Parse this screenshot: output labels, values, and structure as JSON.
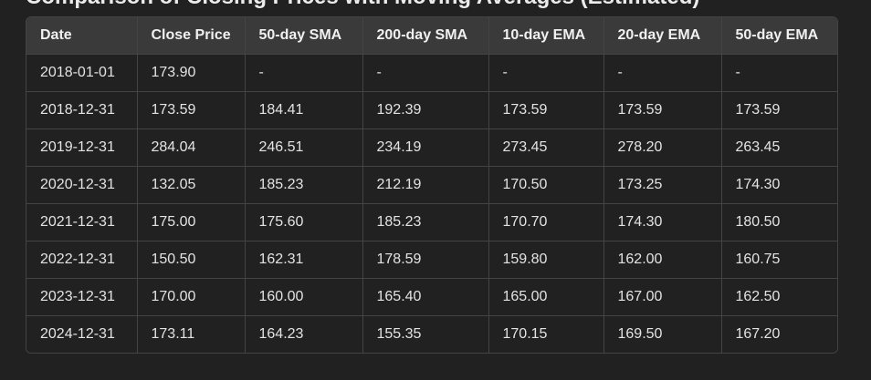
{
  "heading": "Comparison of Closing Prices with Moving Averages (Estimated)",
  "table": {
    "headers": [
      "Date",
      "Close Price",
      "50-day SMA",
      "200-day SMA",
      "10-day EMA",
      "20-day EMA",
      "50-day EMA"
    ],
    "rows": [
      [
        "2018-01-01",
        "173.90",
        "-",
        "-",
        "-",
        "-",
        "-"
      ],
      [
        "2018-12-31",
        "173.59",
        "184.41",
        "192.39",
        "173.59",
        "173.59",
        "173.59"
      ],
      [
        "2019-12-31",
        "284.04",
        "246.51",
        "234.19",
        "273.45",
        "278.20",
        "263.45"
      ],
      [
        "2020-12-31",
        "132.05",
        "185.23",
        "212.19",
        "170.50",
        "173.25",
        "174.30"
      ],
      [
        "2021-12-31",
        "175.00",
        "175.60",
        "185.23",
        "170.70",
        "174.30",
        "180.50"
      ],
      [
        "2022-12-31",
        "150.50",
        "162.31",
        "178.59",
        "159.80",
        "162.00",
        "160.75"
      ],
      [
        "2023-12-31",
        "170.00",
        "160.00",
        "165.40",
        "165.00",
        "167.00",
        "162.50"
      ],
      [
        "2024-12-31",
        "173.11",
        "164.23",
        "155.35",
        "170.15",
        "169.50",
        "167.20"
      ]
    ]
  }
}
